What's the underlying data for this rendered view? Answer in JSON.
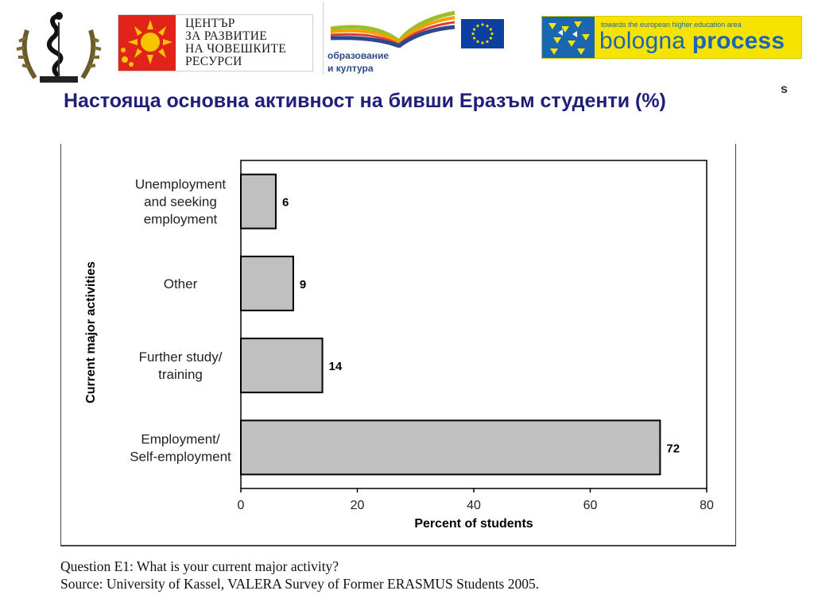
{
  "logos": {
    "hrdc_lines": [
      "ЦЕНТЪР",
      "ЗА РАЗВИТИЕ",
      "НА ЧОВЕШКИТЕ",
      "РЕСУРСИ"
    ],
    "llp_lines": [
      "образование",
      "и култура"
    ],
    "bologna_tagline": "towards the european higher education area",
    "bologna_word1": "bologna",
    "bologna_word2": "process"
  },
  "stray_glyph": "s",
  "slide_title": "Настояща  основна активност на бивши Еразъм студенти (%)",
  "chart_data": {
    "type": "bar",
    "orientation": "horizontal",
    "categories": [
      [
        "Unemployment",
        "and seeking",
        "employment"
      ],
      [
        "Other"
      ],
      [
        "Further study/",
        "training"
      ],
      [
        "Employment/",
        "Self-employment"
      ]
    ],
    "values": [
      6,
      9,
      14,
      72
    ],
    "data_labels": [
      "6",
      "9",
      "14",
      "72"
    ],
    "xlabel": "Percent of students",
    "ylabel": "Current major activities",
    "xlim": [
      0,
      80
    ],
    "xticks": [
      "0",
      "20",
      "40",
      "60",
      "80"
    ],
    "bar_color": "#c0c0c0",
    "grid": false
  },
  "footer": {
    "question": "Question E1: What is your current major activity?",
    "source": "Source: University of Kassel, VALERA Survey of Former ERASMUS Students 2005."
  }
}
